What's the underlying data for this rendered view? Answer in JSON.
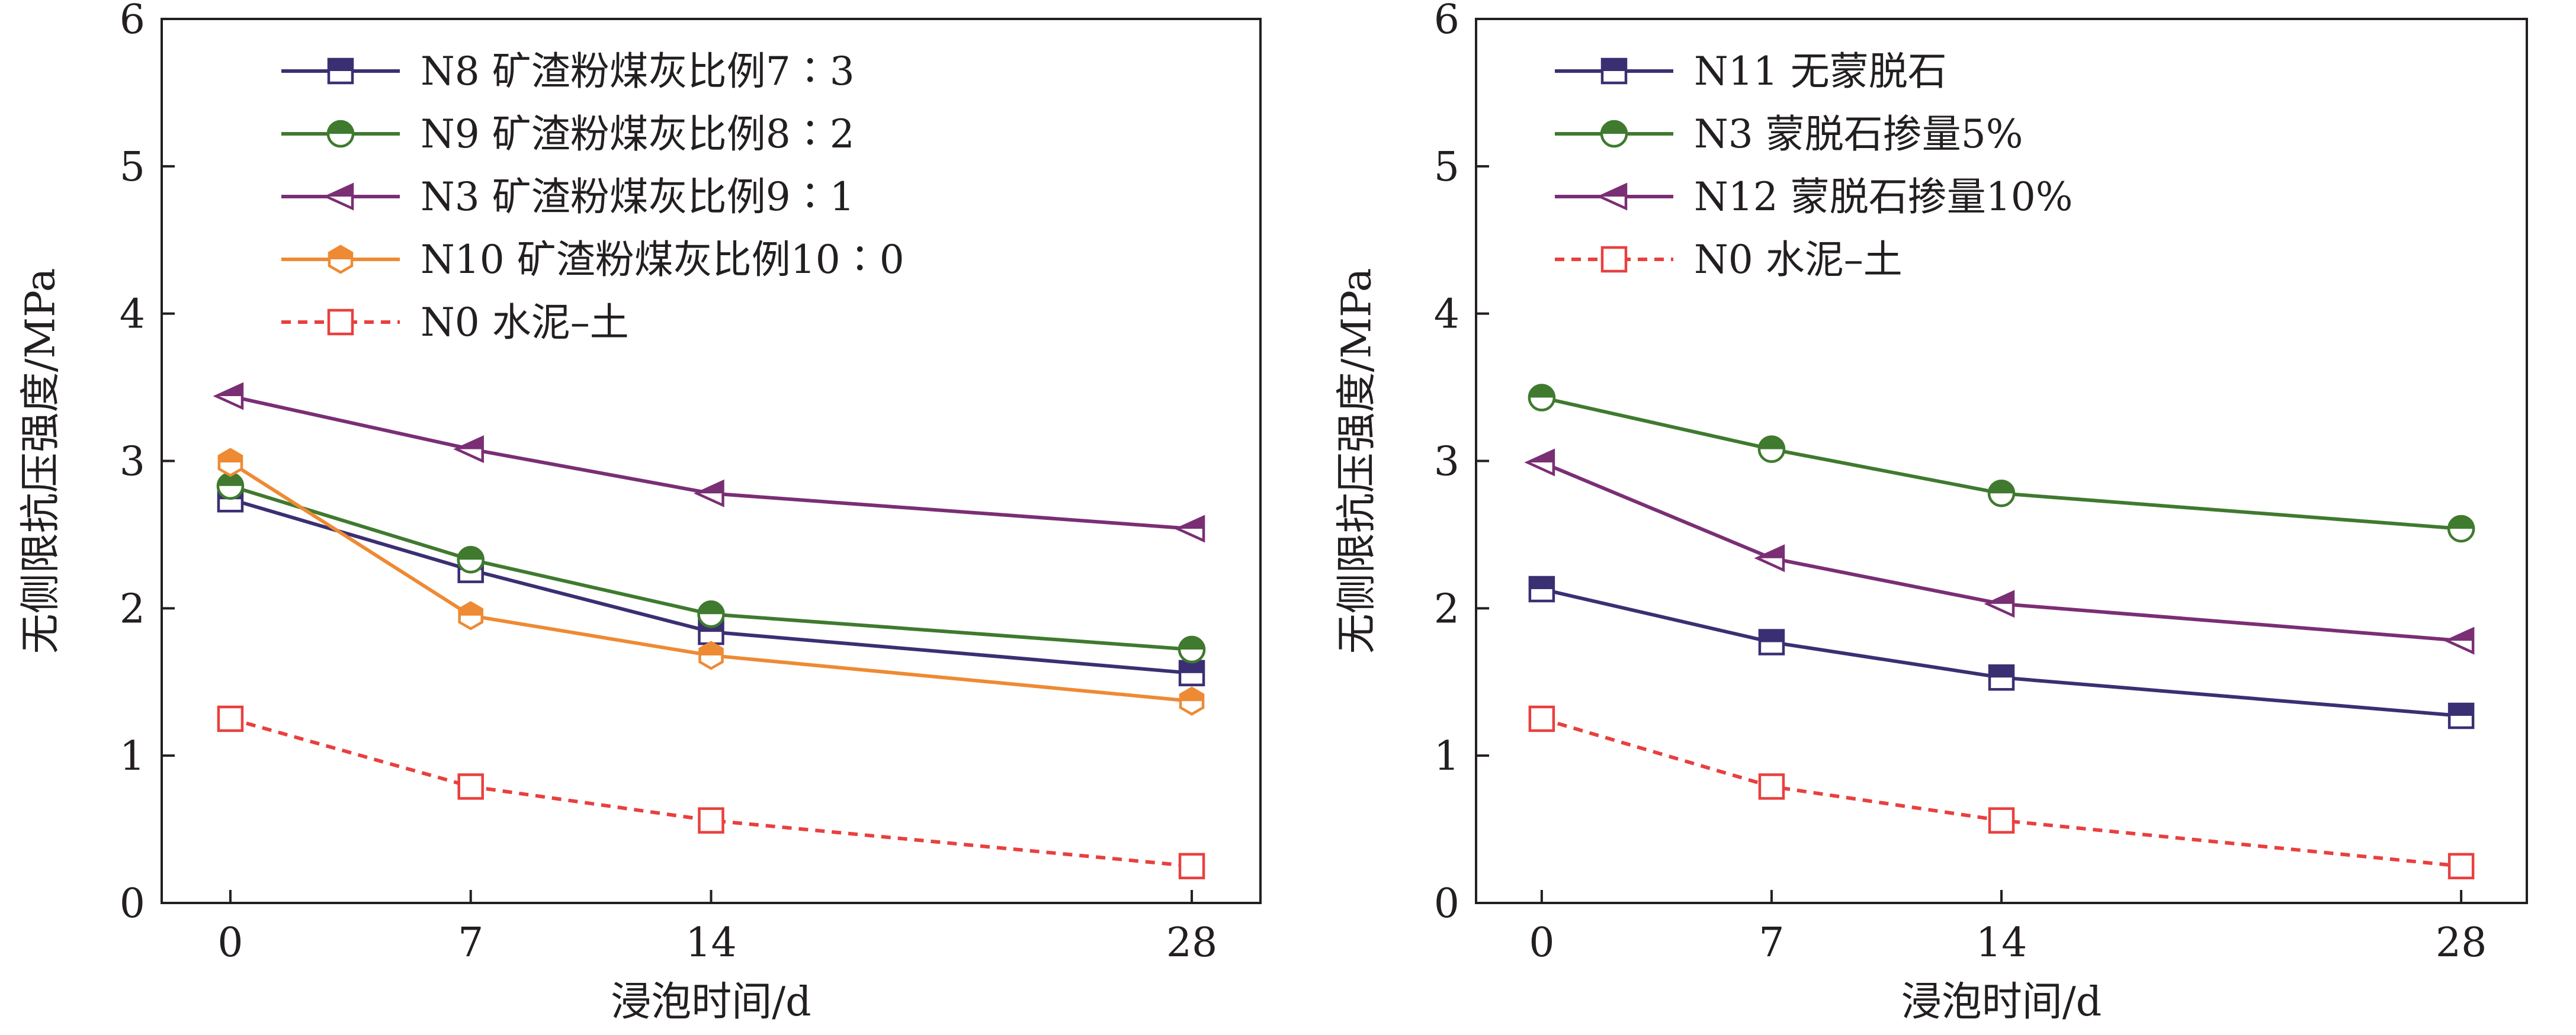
{
  "colors": {
    "N8": "#3b2f73",
    "N9": "#3f7a2e",
    "N3": "#7a2e74",
    "N10": "#ee8a33",
    "N0": "#e8403e",
    "N11": "#3b2f73",
    "N12": "#7a2e74"
  },
  "chart_data": [
    {
      "type": "line",
      "title": "",
      "xlabel": "浸泡时间/d",
      "ylabel": "无侧限抗压强度/MPa",
      "x": [
        0,
        7,
        14,
        28
      ],
      "xtick_labels": [
        "0",
        "7",
        "14",
        "28"
      ],
      "xlim": [
        -2,
        30
      ],
      "ylim": [
        0,
        6
      ],
      "yticks": [
        "0",
        "1",
        "2",
        "3",
        "4",
        "5",
        "6"
      ],
      "grid": false,
      "legend_position": "top-left",
      "series": [
        {
          "name": "N8 矿渣粉煤灰比例7∶3",
          "key": "N8",
          "marker": "square-half",
          "dash": false,
          "values": [
            2.74,
            2.26,
            1.84,
            1.56
          ]
        },
        {
          "name": "N9 矿渣粉煤灰比例8∶2",
          "key": "N9",
          "marker": "circle-half",
          "dash": false,
          "values": [
            2.83,
            2.33,
            1.96,
            1.72
          ]
        },
        {
          "name": "N3 矿渣粉煤灰比例9∶1",
          "key": "N3",
          "marker": "triangle-left-half",
          "dash": false,
          "values": [
            3.44,
            3.08,
            2.78,
            2.54
          ]
        },
        {
          "name": "N10 矿渣粉煤灰比例10∶0",
          "key": "N10",
          "marker": "hexagon-half",
          "dash": false,
          "values": [
            2.99,
            1.95,
            1.68,
            1.37
          ]
        },
        {
          "name": "N0 水泥–土",
          "key": "N0",
          "marker": "square-open",
          "dash": true,
          "values": [
            1.25,
            0.79,
            0.56,
            0.25
          ]
        }
      ]
    },
    {
      "type": "line",
      "title": "",
      "xlabel": "浸泡时间/d",
      "ylabel": "无侧限抗压强度/MPa",
      "x": [
        0,
        7,
        14,
        28
      ],
      "xtick_labels": [
        "0",
        "7",
        "14",
        "28"
      ],
      "xlim": [
        -2,
        30
      ],
      "ylim": [
        0,
        6
      ],
      "yticks": [
        "0",
        "1",
        "2",
        "3",
        "4",
        "5",
        "6"
      ],
      "grid": false,
      "legend_position": "top-left",
      "series": [
        {
          "name": "N11 无蒙脱石",
          "key": "N11",
          "marker": "square-half",
          "dash": false,
          "values": [
            2.13,
            1.77,
            1.53,
            1.27
          ]
        },
        {
          "name": "N3 蒙脱石掺量5%",
          "key": "N3b",
          "color_key": "N9",
          "marker": "circle-half",
          "dash": false,
          "values": [
            3.43,
            3.08,
            2.78,
            2.54
          ]
        },
        {
          "name": "N12 蒙脱石掺量10%",
          "key": "N12",
          "marker": "triangle-left-half",
          "dash": false,
          "values": [
            2.99,
            2.34,
            2.03,
            1.78
          ]
        },
        {
          "name": "N0 水泥–土",
          "key": "N0b",
          "color_key": "N0",
          "marker": "square-open",
          "dash": true,
          "values": [
            1.25,
            0.79,
            0.56,
            0.25
          ]
        }
      ]
    }
  ]
}
